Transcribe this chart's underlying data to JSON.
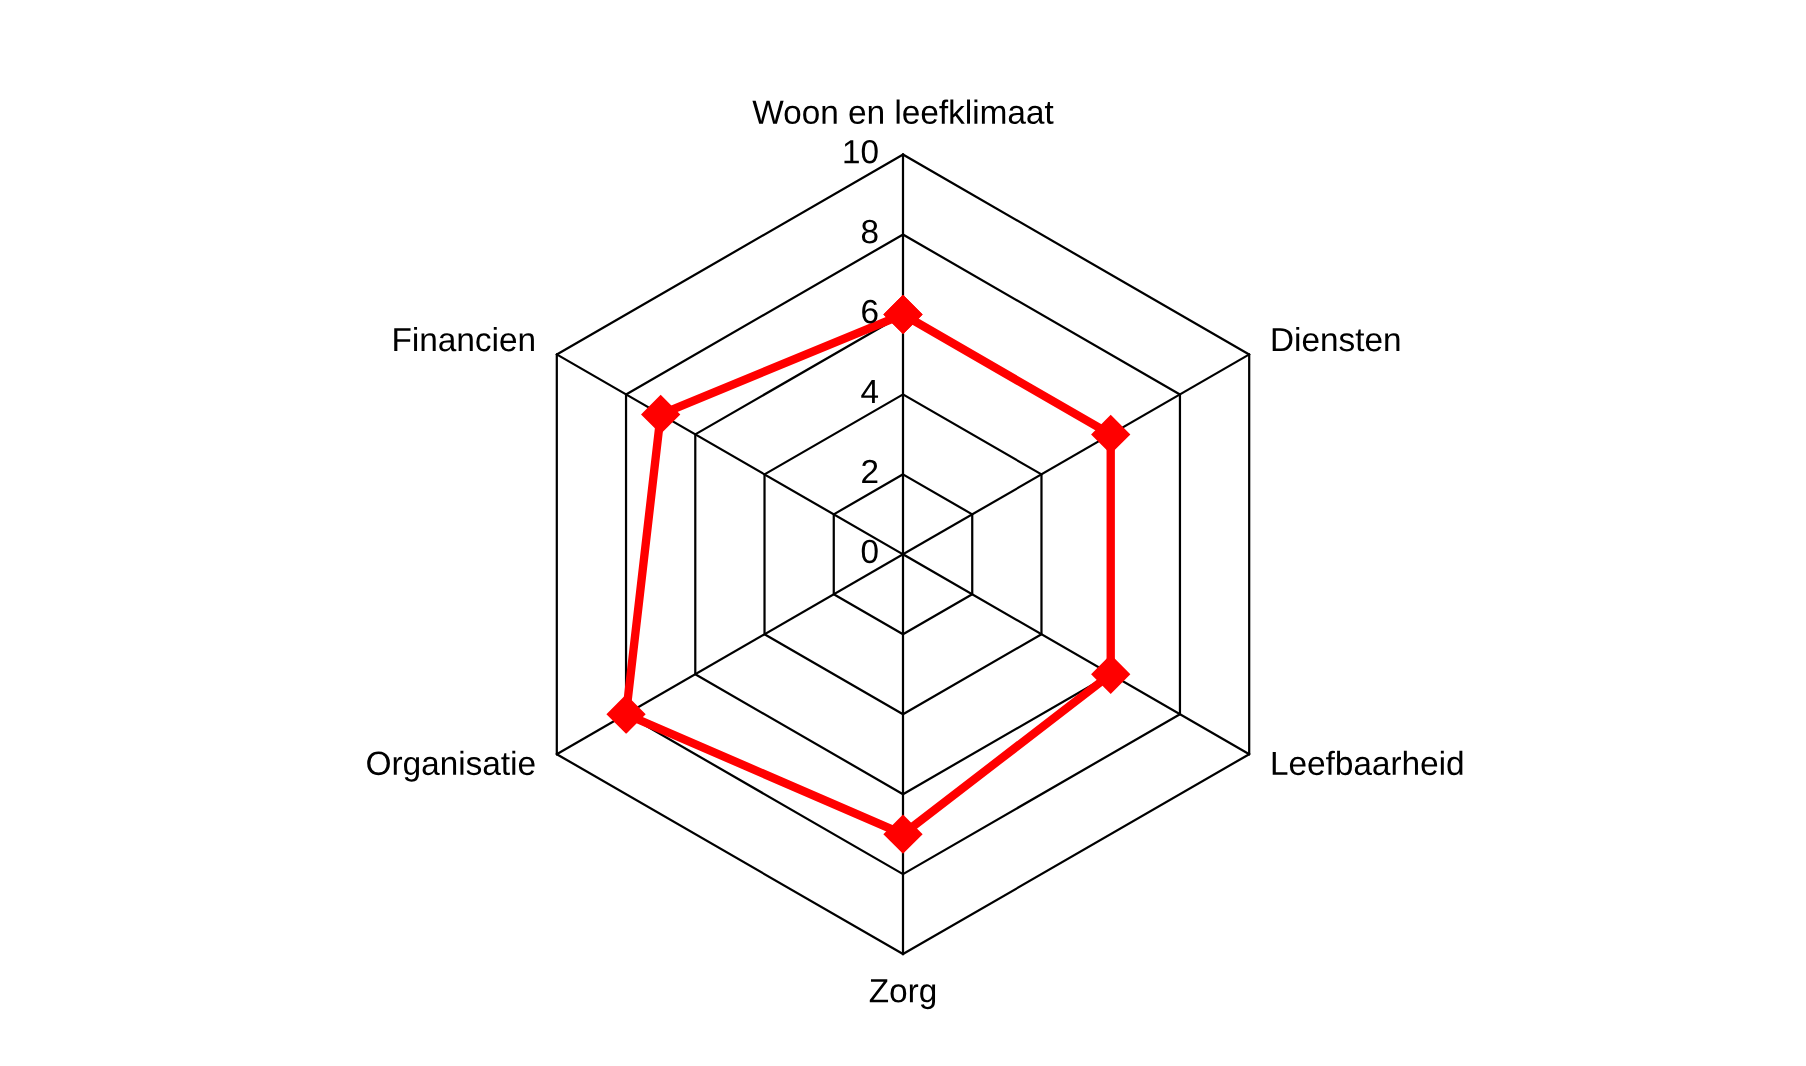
{
  "chart_data": {
    "type": "radar",
    "categories": [
      "Woon en leefklimaat",
      "Diensten",
      "Leefbaarheid",
      "Zorg",
      "Organisatie",
      "Financien"
    ],
    "series": [
      {
        "color": "#ff0000",
        "values": [
          6,
          6,
          6,
          7,
          8,
          7
        ]
      }
    ],
    "ylim": [
      0,
      10
    ],
    "yticks": [
      0,
      2,
      4,
      6,
      8,
      10
    ],
    "grid": true,
    "marker": "diamond",
    "line_style": "solid",
    "legend": false
  }
}
